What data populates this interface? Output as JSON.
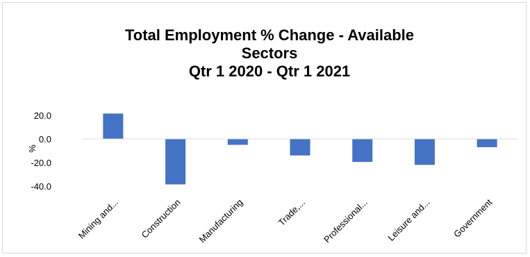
{
  "chart_data": {
    "type": "bar",
    "title_lines": [
      "Total Employment % Change - Available",
      "Sectors",
      "Qtr 1 2020 - Qtr 1 2021"
    ],
    "ylabel": "%",
    "xlabel": "",
    "categories": [
      "Mining and...",
      "Construction",
      "Manufacturing",
      "Trade,...",
      "Professional...",
      "Leisure and...",
      "Government"
    ],
    "values": [
      21.5,
      -38.5,
      -5.0,
      -14.0,
      -19.5,
      -22.0,
      -7.0
    ],
    "ylim": [
      -40,
      20
    ],
    "yticks": [
      20,
      0,
      -20,
      -40
    ],
    "ytick_labels": [
      "20.0",
      "0.0",
      "-20.0",
      "-40.0"
    ],
    "grid": false,
    "legend": "none",
    "bar_color": "#4472c4",
    "axis_color": "#d9d9d9"
  }
}
